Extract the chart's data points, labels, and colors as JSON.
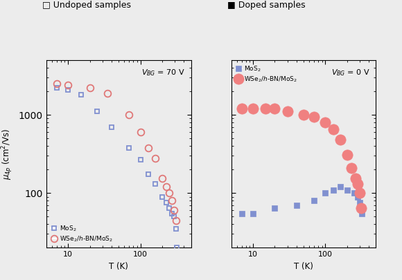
{
  "title_left": "□ Undoped samples",
  "title_right": "■ Doped samples",
  "annotation_left": "$V_{BG}$ = 70 V",
  "annotation_right": "$V_{BG}$ = 0 V",
  "ylabel": "$\\mu_{4p}$ (cm$^2$/Vs)",
  "xlabel": "T (K)",
  "bg_color": "#f0f0f0",
  "mos2_color": "#8090d0",
  "wse2_color_undoped": "#e07878",
  "wse2_color_doped": "#f08080",
  "undoped_mos2_T": [
    7,
    10,
    15,
    25,
    40,
    70,
    100,
    130,
    160,
    200,
    230,
    250,
    270,
    290,
    310,
    320
  ],
  "undoped_mos2_mu": [
    2200,
    2100,
    1800,
    1100,
    700,
    380,
    270,
    175,
    130,
    90,
    75,
    65,
    55,
    50,
    35,
    20
  ],
  "undoped_wse2_T": [
    7,
    10,
    20,
    35,
    70,
    100,
    130,
    160,
    200,
    230,
    250,
    270,
    290,
    310
  ],
  "undoped_wse2_mu": [
    2500,
    2400,
    2200,
    1900,
    1000,
    600,
    380,
    280,
    155,
    120,
    100,
    80,
    60,
    45
  ],
  "doped_mos2_T": [
    7,
    10,
    20,
    40,
    70,
    100,
    130,
    160,
    200,
    250,
    280,
    300,
    310,
    320
  ],
  "doped_mos2_mu": [
    55,
    55,
    65,
    70,
    80,
    100,
    110,
    120,
    110,
    100,
    90,
    75,
    65,
    55
  ],
  "doped_wse2_T": [
    7,
    10,
    15,
    20,
    30,
    50,
    70,
    100,
    130,
    160,
    200,
    230,
    260,
    280,
    300,
    310
  ],
  "doped_wse2_mu": [
    1200,
    1200,
    1200,
    1200,
    1100,
    1000,
    950,
    800,
    650,
    480,
    310,
    210,
    155,
    130,
    100,
    65
  ]
}
